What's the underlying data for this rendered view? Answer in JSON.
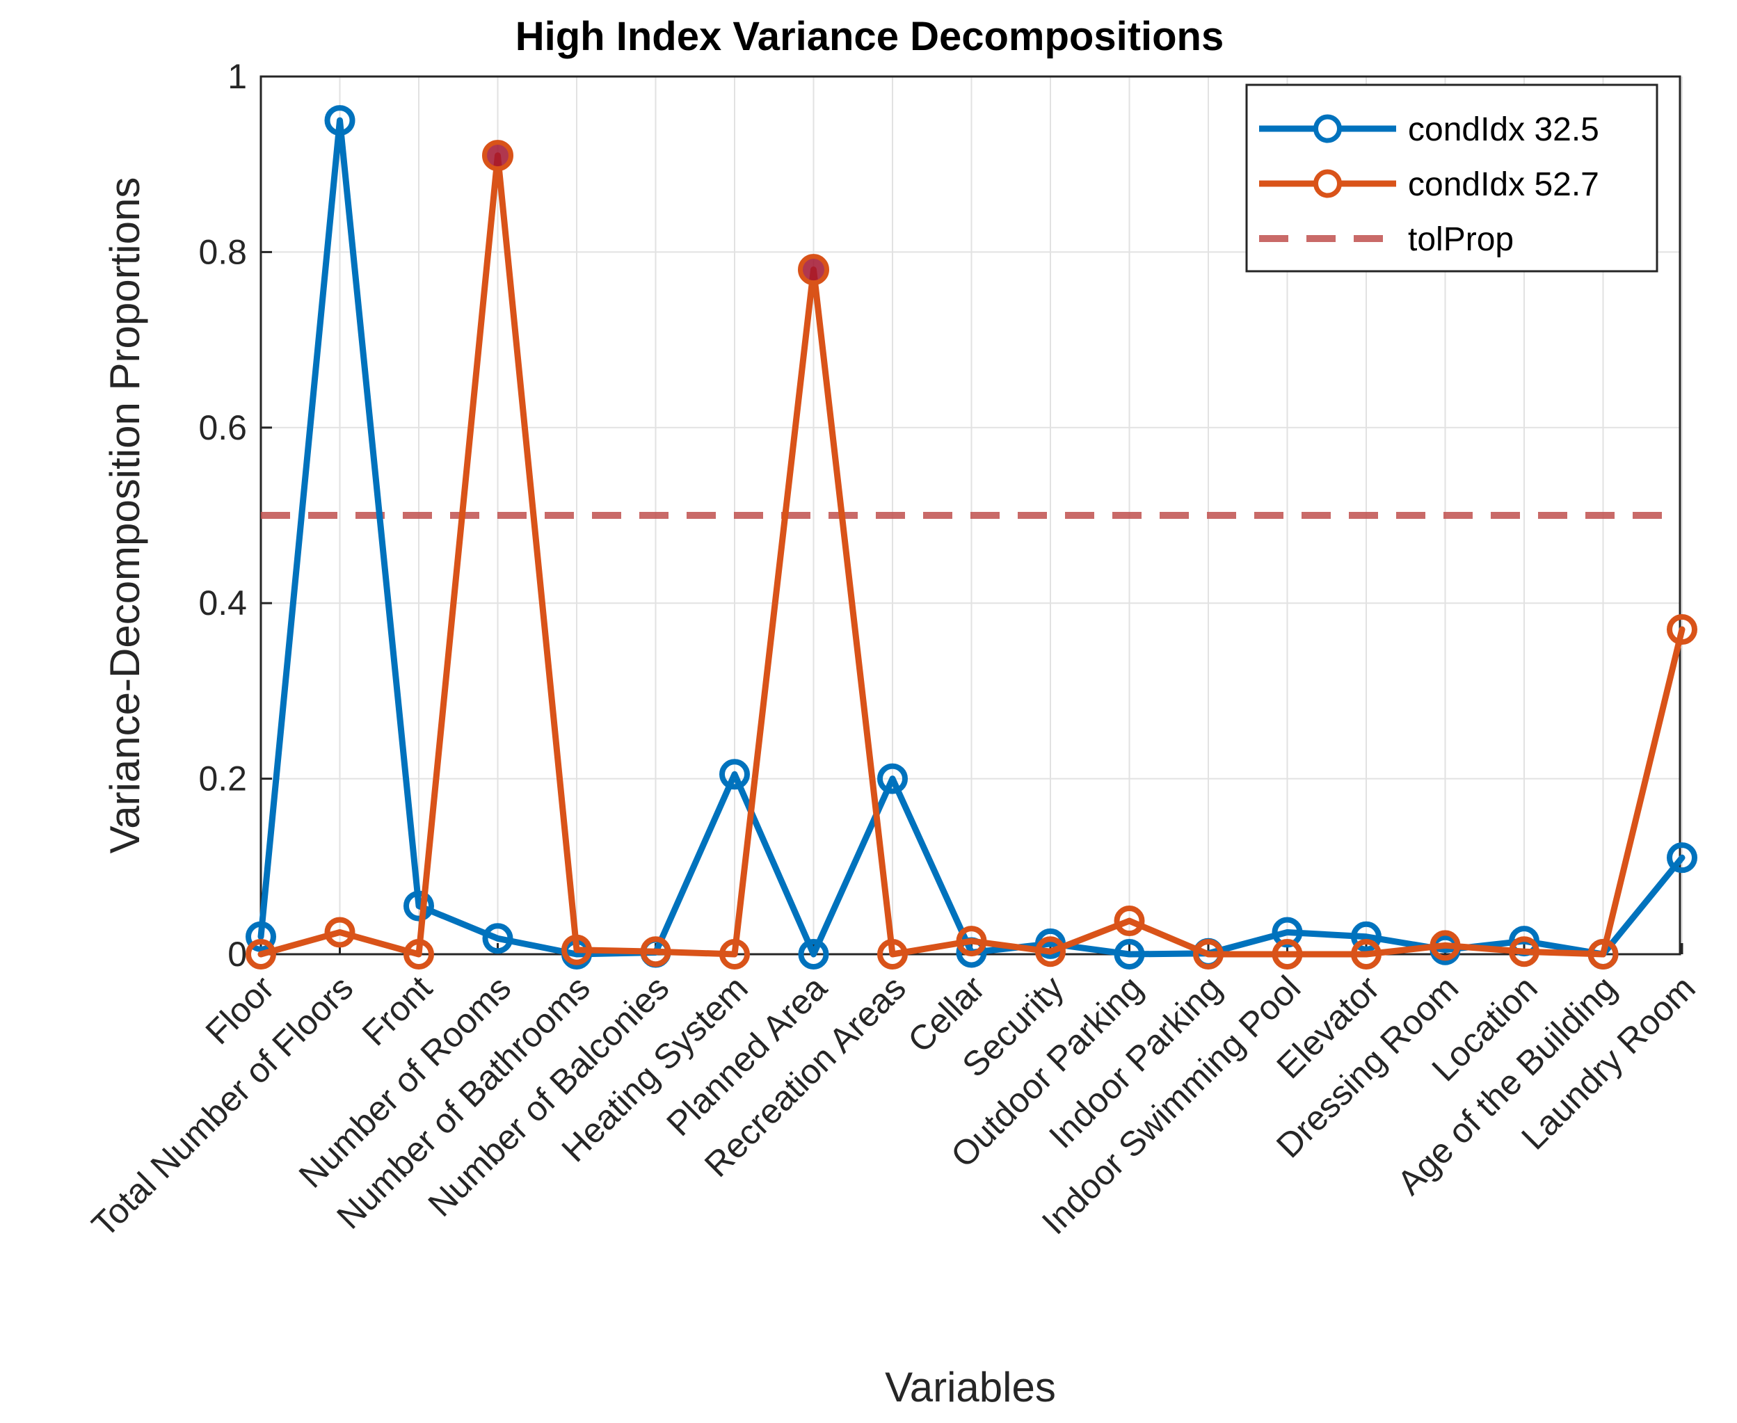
{
  "chart_data": {
    "type": "line",
    "title": "High Index Variance Decompositions",
    "xlabel": "Variables",
    "ylabel": "Variance-Decomposition Proportions",
    "ylim": [
      0,
      1
    ],
    "yticks": [
      "0",
      "0.2",
      "0.4",
      "0.6",
      "0.8",
      "1"
    ],
    "grid": true,
    "legend_position": "top-right",
    "categories": [
      "Floor",
      "Total Number of Floors",
      "Front",
      "Number of Rooms",
      "Number of Bathrooms",
      "Number of Balconies",
      "Heating System",
      "Planned Area",
      "Recreation Areas",
      "Cellar",
      "Security",
      "Outdoor Parking",
      "Indoor Parking",
      "Indoor Swimming Pool",
      "Elevator",
      "Dressing Room",
      "Location",
      "Age of the Building",
      "Laundry Room"
    ],
    "series": [
      {
        "name": "condIdx 32.5",
        "color": "#0072BD",
        "values": [
          0.02,
          0.95,
          0.055,
          0.018,
          0.0,
          0.002,
          0.205,
          0.0,
          0.2,
          0.002,
          0.012,
          0.0,
          0.001,
          0.025,
          0.02,
          0.005,
          0.015,
          0.0,
          0.11
        ]
      },
      {
        "name": "condIdx 52.7",
        "color": "#D95319",
        "values": [
          0.0,
          0.025,
          0.0,
          0.91,
          0.005,
          0.003,
          0.0,
          0.78,
          0.0,
          0.015,
          0.003,
          0.038,
          0.0,
          0.0,
          0.0,
          0.01,
          0.003,
          0.0,
          0.37
        ]
      }
    ],
    "highlighted_points": {
      "series": "condIdx 52.7",
      "categories": [
        "Number of Rooms",
        "Planned Area"
      ],
      "color": "#A2142F"
    },
    "threshold": {
      "name": "tolProp",
      "value": 0.5,
      "color": "#C0504D",
      "style": "dashed"
    }
  }
}
